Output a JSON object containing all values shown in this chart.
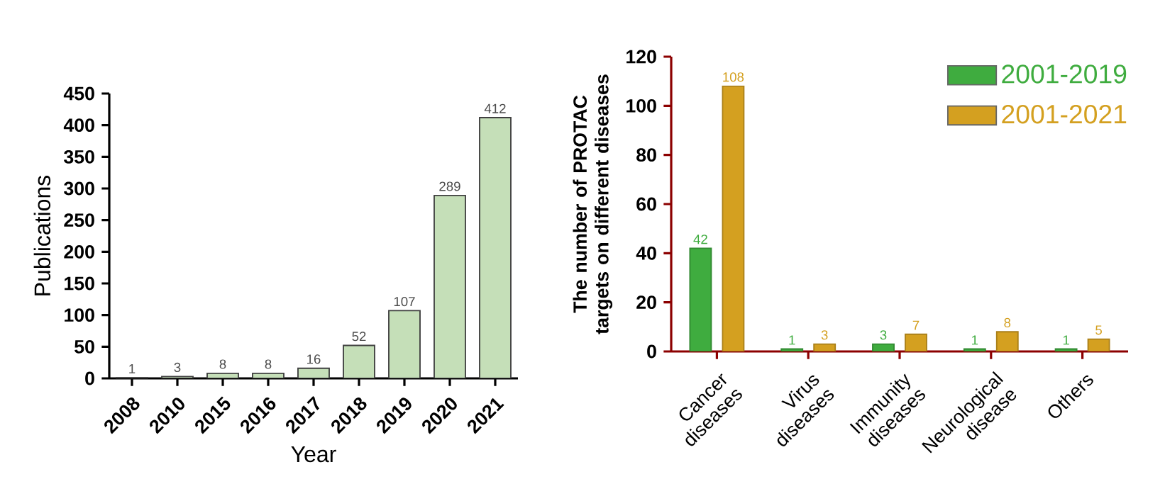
{
  "chart_data": [
    {
      "type": "bar",
      "xlabel": "Year",
      "ylabel": "Publications",
      "categories": [
        "2008",
        "2010",
        "2015",
        "2016",
        "2017",
        "2018",
        "2019",
        "2020",
        "2021"
      ],
      "values": [
        1,
        3,
        8,
        8,
        16,
        52,
        107,
        289,
        412
      ],
      "color": "#c5dfb8",
      "ylim": [
        0,
        450
      ],
      "yticks": [
        0,
        50,
        100,
        150,
        200,
        250,
        300,
        350,
        400,
        450
      ],
      "data_labels": true,
      "legend": false,
      "grid": false
    },
    {
      "type": "bar",
      "ylabel": "The number of PROTAC targets on different diseases",
      "categories": [
        "Cancer diseases",
        "Virus diseases",
        "Immunity diseases",
        "Neurological disease",
        "Others"
      ],
      "series": [
        {
          "name": "2001-2019",
          "color": "#3fac3f",
          "values": [
            42,
            1,
            3,
            1,
            1
          ]
        },
        {
          "name": "2001-2021",
          "color": "#d4a020",
          "values": [
            108,
            3,
            7,
            8,
            5
          ]
        }
      ],
      "ylim": [
        0,
        120
      ],
      "yticks": [
        0,
        20,
        40,
        60,
        80,
        100,
        120
      ],
      "data_labels": true,
      "legend": "top right",
      "grid": false
    }
  ]
}
